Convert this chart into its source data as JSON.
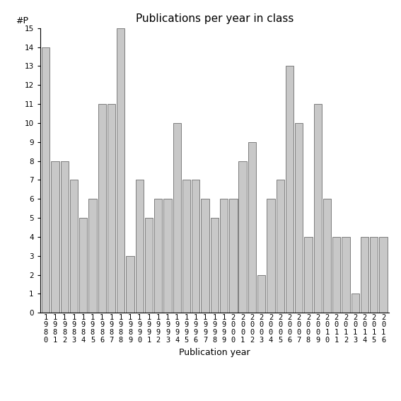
{
  "title": "Publications per year in class",
  "xlabel": "Publication year",
  "ylabel": "#P",
  "years": [
    1980,
    1981,
    1982,
    1983,
    1984,
    1985,
    1986,
    1987,
    1988,
    1989,
    1990,
    1991,
    1992,
    1993,
    1994,
    1995,
    1996,
    1997,
    1998,
    1999,
    2000,
    2001,
    2002,
    2003,
    2004,
    2005,
    2006,
    2007,
    2008,
    2009,
    2010,
    2011,
    2012,
    2013,
    2014,
    2015,
    2016
  ],
  "values": [
    14,
    8,
    8,
    7,
    5,
    6,
    11,
    11,
    15,
    3,
    7,
    5,
    6,
    6,
    10,
    7,
    7,
    6,
    5,
    6,
    6,
    8,
    9,
    2,
    6,
    7,
    13,
    10,
    4,
    11,
    6,
    4,
    4,
    1,
    4,
    4,
    4
  ],
  "bar_color": "#c8c8c8",
  "bar_edge_color": "#555555",
  "ylim": [
    0,
    15
  ],
  "yticks": [
    0,
    1,
    2,
    3,
    4,
    5,
    6,
    7,
    8,
    9,
    10,
    11,
    12,
    13,
    14,
    15
  ],
  "background_color": "#ffffff",
  "title_fontsize": 11,
  "label_fontsize": 9,
  "tick_fontsize": 7.5
}
